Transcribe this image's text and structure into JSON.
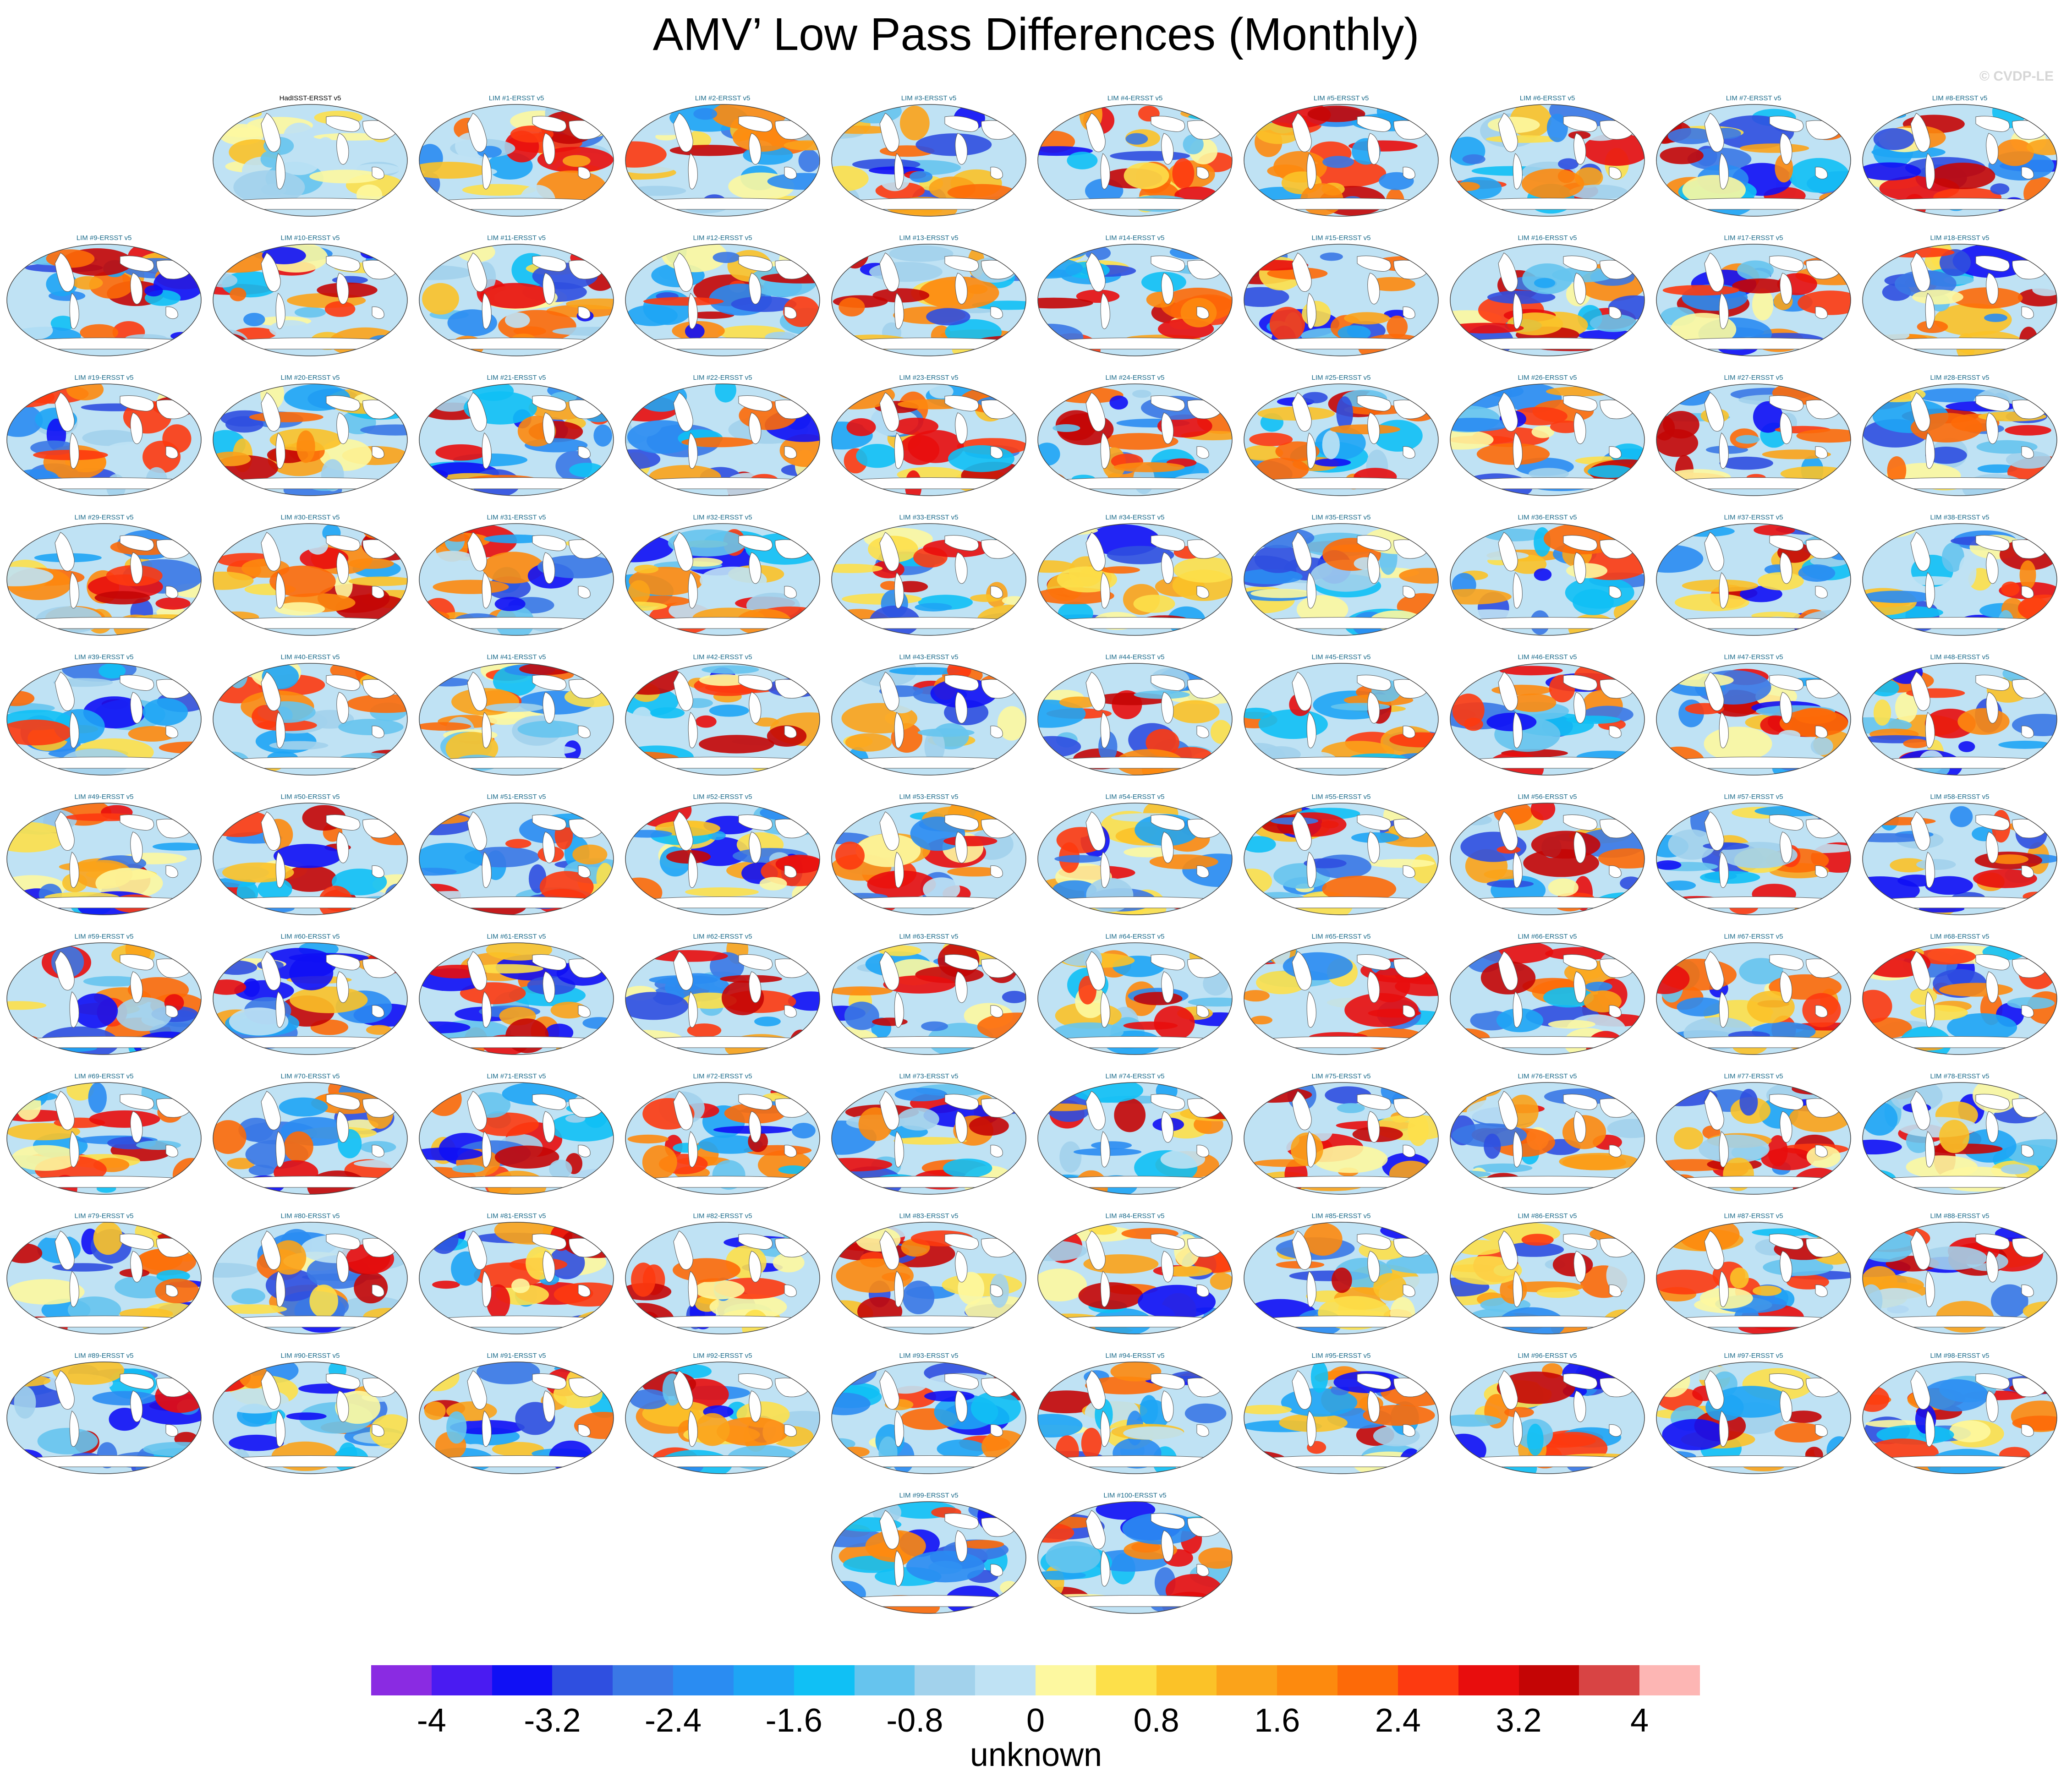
{
  "title": "AMV’ Low Pass Differences (Monthly)",
  "credit": "© CVDP-LE",
  "panels": [
    "HadISST-ERSST v5",
    "LIM #1-ERSST v5",
    "LIM #2-ERSST v5",
    "LIM #3-ERSST v5",
    "LIM #4-ERSST v5",
    "LIM #5-ERSST v5",
    "LIM #6-ERSST v5",
    "LIM #7-ERSST v5",
    "LIM #8-ERSST v5",
    "LIM #9-ERSST v5",
    "LIM #10-ERSST v5",
    "LIM #11-ERSST v5",
    "LIM #12-ERSST v5",
    "LIM #13-ERSST v5",
    "LIM #14-ERSST v5",
    "LIM #15-ERSST v5",
    "LIM #16-ERSST v5",
    "LIM #17-ERSST v5",
    "LIM #18-ERSST v5",
    "LIM #19-ERSST v5",
    "LIM #20-ERSST v5",
    "LIM #21-ERSST v5",
    "LIM #22-ERSST v5",
    "LIM #23-ERSST v5",
    "LIM #24-ERSST v5",
    "LIM #25-ERSST v5",
    "LIM #26-ERSST v5",
    "LIM #27-ERSST v5",
    "LIM #28-ERSST v5",
    "LIM #29-ERSST v5",
    "LIM #30-ERSST v5",
    "LIM #31-ERSST v5",
    "LIM #32-ERSST v5",
    "LIM #33-ERSST v5",
    "LIM #34-ERSST v5",
    "LIM #35-ERSST v5",
    "LIM #36-ERSST v5",
    "LIM #37-ERSST v5",
    "LIM #38-ERSST v5",
    "LIM #39-ERSST v5",
    "LIM #40-ERSST v5",
    "LIM #41-ERSST v5",
    "LIM #42-ERSST v5",
    "LIM #43-ERSST v5",
    "LIM #44-ERSST v5",
    "LIM #45-ERSST v5",
    "LIM #46-ERSST v5",
    "LIM #47-ERSST v5",
    "LIM #48-ERSST v5",
    "LIM #49-ERSST v5",
    "LIM #50-ERSST v5",
    "LIM #51-ERSST v5",
    "LIM #52-ERSST v5",
    "LIM #53-ERSST v5",
    "LIM #54-ERSST v5",
    "LIM #55-ERSST v5",
    "LIM #56-ERSST v5",
    "LIM #57-ERSST v5",
    "LIM #58-ERSST v5",
    "LIM #59-ERSST v5",
    "LIM #60-ERSST v5",
    "LIM #61-ERSST v5",
    "LIM #62-ERSST v5",
    "LIM #63-ERSST v5",
    "LIM #64-ERSST v5",
    "LIM #65-ERSST v5",
    "LIM #66-ERSST v5",
    "LIM #67-ERSST v5",
    "LIM #68-ERSST v5",
    "LIM #69-ERSST v5",
    "LIM #70-ERSST v5",
    "LIM #71-ERSST v5",
    "LIM #72-ERSST v5",
    "LIM #73-ERSST v5",
    "LIM #74-ERSST v5",
    "LIM #75-ERSST v5",
    "LIM #76-ERSST v5",
    "LIM #77-ERSST v5",
    "LIM #78-ERSST v5",
    "LIM #79-ERSST v5",
    "LIM #80-ERSST v5",
    "LIM #81-ERSST v5",
    "LIM #82-ERSST v5",
    "LIM #83-ERSST v5",
    "LIM #84-ERSST v5",
    "LIM #85-ERSST v5",
    "LIM #86-ERSST v5",
    "LIM #87-ERSST v5",
    "LIM #88-ERSST v5",
    "LIM #89-ERSST v5",
    "LIM #90-ERSST v5",
    "LIM #91-ERSST v5",
    "LIM #92-ERSST v5",
    "LIM #93-ERSST v5",
    "LIM #94-ERSST v5",
    "LIM #95-ERSST v5",
    "LIM #96-ERSST v5",
    "LIM #97-ERSST v5",
    "LIM #98-ERSST v5",
    "LIM #99-ERSST v5",
    "LIM #100-ERSST v5"
  ],
  "colorbar": {
    "label": "unknown",
    "levels": [
      -4,
      -3.6,
      -3.2,
      -2.8,
      -2.4,
      -2,
      -1.6,
      -1.2,
      -0.8,
      -0.4,
      0,
      0.4,
      0.8,
      1.2,
      1.6,
      2,
      2.4,
      2.8,
      3.2,
      3.6,
      4
    ],
    "tick_labels": [
      "-4",
      "-3.2",
      "-2.4",
      "-1.6",
      "-0.8",
      "0",
      "0.8",
      "1.6",
      "2.4",
      "3.2",
      "4"
    ],
    "colors": [
      "#8a2be2",
      "#4a1bf2",
      "#1010f5",
      "#2f4fe0",
      "#3a78e6",
      "#2a8cf2",
      "#1ea5f5",
      "#10c0f5",
      "#66c4ee",
      "#a2d2ec",
      "#bfe2f4",
      "#fdf8a0",
      "#fde04a",
      "#fbc228",
      "#fba31a",
      "#fd8a0e",
      "#fd6a08",
      "#fd3a10",
      "#e80d0d",
      "#c40505",
      "#d84444",
      "#fdb6b4"
    ]
  }
}
